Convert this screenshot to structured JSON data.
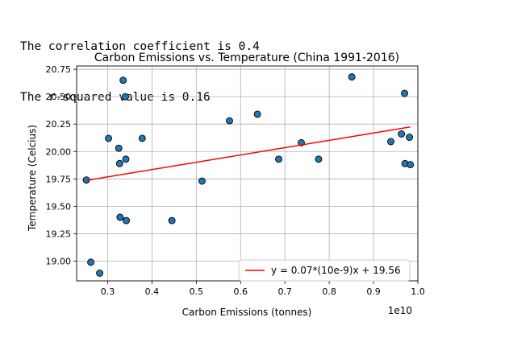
{
  "output": {
    "line1": "The correlation coefficient is 0.4",
    "line2": "The r-squared value is 0.16"
  },
  "chart_data": {
    "type": "scatter",
    "title": "Carbon Emissions vs. Temperature (China 1991-2016)",
    "xlabel": "Carbon Emissions (tonnes)",
    "ylabel": "Temperature (Celcius)",
    "x_offset_label": "1e10",
    "xlim": [
      0.23,
      1.0
    ],
    "ylim": [
      18.82,
      20.78
    ],
    "xticks": [
      0.3,
      0.4,
      0.5,
      0.6,
      0.7,
      0.8,
      0.9,
      1.0
    ],
    "xtick_labels": [
      "0.3",
      "0.4",
      "0.5",
      "0.6",
      "0.7",
      "0.8",
      "0.9",
      "1.0"
    ],
    "yticks": [
      19.0,
      19.25,
      19.5,
      19.75,
      20.0,
      20.25,
      20.5,
      20.75
    ],
    "ytick_labels": [
      "19.00",
      "19.25",
      "19.50",
      "19.75",
      "20.00",
      "20.25",
      "20.50",
      "20.75"
    ],
    "grid": true,
    "legend_position": "lower-right",
    "points": [
      {
        "x": 0.252,
        "y": 19.74
      },
      {
        "x": 0.262,
        "y": 18.99
      },
      {
        "x": 0.282,
        "y": 18.89
      },
      {
        "x": 0.302,
        "y": 20.12
      },
      {
        "x": 0.325,
        "y": 20.03
      },
      {
        "x": 0.327,
        "y": 19.89
      },
      {
        "x": 0.328,
        "y": 19.4
      },
      {
        "x": 0.335,
        "y": 20.65
      },
      {
        "x": 0.34,
        "y": 20.5
      },
      {
        "x": 0.341,
        "y": 19.93
      },
      {
        "x": 0.342,
        "y": 19.37
      },
      {
        "x": 0.378,
        "y": 20.12
      },
      {
        "x": 0.445,
        "y": 19.37
      },
      {
        "x": 0.513,
        "y": 19.73
      },
      {
        "x": 0.575,
        "y": 20.28
      },
      {
        "x": 0.638,
        "y": 20.34
      },
      {
        "x": 0.686,
        "y": 19.93
      },
      {
        "x": 0.737,
        "y": 20.08
      },
      {
        "x": 0.776,
        "y": 19.93
      },
      {
        "x": 0.851,
        "y": 20.68
      },
      {
        "x": 0.939,
        "y": 20.09
      },
      {
        "x": 0.963,
        "y": 20.16
      },
      {
        "x": 0.97,
        "y": 20.53
      },
      {
        "x": 0.971,
        "y": 19.89
      },
      {
        "x": 0.981,
        "y": 20.13
      },
      {
        "x": 0.983,
        "y": 19.88
      }
    ],
    "regression": {
      "label": "y = 0.07*(10e-9)x + 19.56",
      "x": [
        0.252,
        0.983
      ],
      "y": [
        19.736,
        20.224
      ],
      "color": "#ff0000"
    },
    "marker_color": "#1f77b4"
  }
}
